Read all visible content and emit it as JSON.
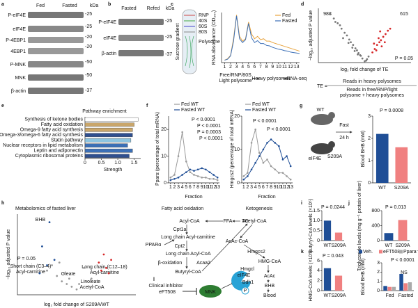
{
  "panels": [
    "a",
    "b",
    "c",
    "d",
    "e",
    "f",
    "g",
    "h",
    "i",
    "j",
    "k",
    "l"
  ],
  "blot_a": {
    "columns": [
      "Fed",
      "Fasted"
    ],
    "unit": "kDa",
    "rows": [
      "P-eIF4E",
      "eIF4E",
      "P-4EBP1",
      "4EBP1",
      "P-MNK",
      "MNK",
      "β-actin"
    ],
    "markers": [
      "-25",
      "-25",
      "-20",
      "-20",
      "-50",
      "-50",
      "-37"
    ]
  },
  "blot_b": {
    "columns": [
      "Fasted",
      "Refed"
    ],
    "unit": "kDa",
    "rows": [
      "P-eIF4E",
      "eIF4E",
      "β-actin"
    ],
    "markers": [
      "-25",
      "-25",
      "-37"
    ]
  },
  "gradient": {
    "label": "Sucrose gradient",
    "layers": [
      "RNP",
      "40S",
      "60S",
      "80S",
      "Polysome"
    ],
    "fractions": [
      "Free/RNP/80S",
      "Light polysome",
      "Heavy polysomes",
      "RNA-seq"
    ]
  },
  "te_formula": {
    "lhs": "TE =",
    "numerator": "Reads in heavy polysomes",
    "denominator": [
      "Reads in free/RNP/light",
      "polysome + heavy polysomes"
    ]
  },
  "mice": {
    "wt": "WT",
    "mutant": "eIF4E",
    "mutant_sup": "S209A",
    "treatment": [
      "Fast",
      "24 h"
    ]
  },
  "pathway": {
    "fao_title": "Fatty acid oxidation",
    "keto_title": "Ketogenesis",
    "fao": [
      "Acyl-CoA",
      "FFA",
      "TG",
      "Cpt1a",
      "Long chain Acyl-carnitine",
      "Cpt2",
      "PPARα",
      "Long chain Acyl-CoA",
      "β-oxidation",
      "Acaa2",
      "Butyryl-CoA"
    ],
    "keto": [
      "Acetyl-CoA",
      "AcAc-CoA",
      "Hmgcs2",
      "HMG-CoA",
      "Hmgcl",
      "AcAc",
      "Bdh1",
      "BHB",
      "Blood"
    ]
  },
  "inhibitor": {
    "label": [
      "Clinical inhibitor",
      "eFT508"
    ],
    "kinase": "MNK",
    "target": "eIF4E",
    "phospho": "P"
  },
  "chart_data": [
    {
      "type": "line",
      "ylabel": "RNA absorbance (OD₂₅₄)",
      "xlim": [
        0.5,
        13.5
      ],
      "ylim": [
        0,
        1.05
      ],
      "xticks": [
        1,
        2,
        3,
        4,
        5,
        6,
        7,
        8,
        9,
        10,
        11,
        12,
        13
      ],
      "x": [
        1,
        1.5,
        2,
        2.5,
        3,
        3.5,
        4,
        4.5,
        5,
        5.5,
        6,
        6.5,
        7,
        7.5,
        8,
        8.5,
        9,
        9.5,
        10,
        10.5,
        11,
        11.5,
        12,
        12.5,
        13,
        13.5
      ],
      "legend": "upper right",
      "series": [
        {
          "name": "Fed",
          "color": "#e8a33d",
          "values": [
            0.05,
            0.08,
            0.15,
            0.5,
            1.0,
            0.55,
            0.45,
            0.5,
            0.85,
            0.6,
            0.5,
            0.55,
            0.48,
            0.5,
            0.45,
            0.45,
            0.42,
            0.4,
            0.38,
            0.36,
            0.34,
            0.32,
            0.3,
            0.28,
            0.26,
            0.24
          ]
        },
        {
          "name": "Fasted",
          "color": "#3b6fb6",
          "values": [
            0.05,
            0.07,
            0.14,
            0.45,
            0.98,
            0.5,
            0.42,
            0.48,
            0.82,
            0.52,
            0.42,
            0.46,
            0.4,
            0.4,
            0.36,
            0.35,
            0.32,
            0.3,
            0.28,
            0.27,
            0.25,
            0.24,
            0.22,
            0.21,
            0.2,
            0.19
          ]
        }
      ]
    },
    {
      "type": "scatter",
      "xlabel": "log₂ fold change of TE",
      "ylabel": "−log₁₀ adjusted P value",
      "xlim": [
        -6,
        6
      ],
      "ylim": [
        0,
        8
      ],
      "annotations": [
        "983",
        "615",
        "P = 0.05"
      ],
      "series": [
        {
          "color": "#777777",
          "x": [
            -4.5,
            -4,
            -3.5,
            -3.2,
            -3,
            -2.6,
            -2.3,
            -2,
            -1.8,
            -1.5,
            -1.2,
            -1,
            -0.8,
            -0.5,
            -0.3,
            0,
            0.3,
            0.5,
            -2.8,
            -1.6,
            -0.9,
            -2.1,
            -3.8,
            -1.3,
            0.2,
            -0.6
          ],
          "values": [
            7.2,
            6.5,
            5.8,
            5.5,
            5,
            4.4,
            4,
            3.4,
            3,
            2.6,
            2.1,
            1.8,
            1.4,
            1,
            0.6,
            0.2,
            0.5,
            0.9,
            3.6,
            2.2,
            1.2,
            2.9,
            6,
            1.7,
            0.3,
            1.1
          ]
        },
        {
          "color": "#d62728",
          "x": [
            1,
            1.3,
            1.6,
            1.9,
            2.1,
            2.4,
            2.7,
            3,
            1.2,
            1.8,
            2.2,
            2.6,
            1.5,
            2,
            3.3
          ],
          "values": [
            1.5,
            2,
            2.6,
            3,
            3.3,
            3.8,
            4.2,
            4.7,
            2.8,
            3.6,
            2.4,
            3,
            1.8,
            4.6,
            5
          ]
        }
      ]
    },
    {
      "type": "barh",
      "title": "Pathway enrichment",
      "xlabel": "Strength",
      "xlim": [
        0,
        1.7
      ],
      "xticks": [
        0,
        0.5,
        {
          "value": 1,
          "label": "1.0"
        },
        1.5
      ],
      "categories": [
        "Synthesis of ketone bodies",
        "Fatty acid oxidation",
        "Omega-9 fatty acid synthesis",
        "Omega-3/omega-6 fatty acid synthesis",
        "Statin pathway",
        "Nuclear receptors in lipid metabolism",
        "Leptin and adiponectin",
        "Cytoplasmic ribosomal proteins"
      ],
      "values": [
        1.62,
        1.5,
        1.45,
        1.45,
        1.4,
        1.3,
        1.45,
        1.35
      ],
      "colors": [
        "#ffffff",
        "#c9a66b",
        "#c9a66b",
        "#2f4f8f",
        "#8ec5e0",
        "#3b6fb6",
        "#3b6fb6",
        "#2f4f8f"
      ]
    },
    {
      "type": "line",
      "ylabel": "Pparα (percentage of total mRNA)",
      "xlabel": "Fraction",
      "xlim": [
        0.5,
        13.5
      ],
      "ylim": [
        0,
        25
      ],
      "yticks": [
        0,
        10,
        20
      ],
      "xticks": [
        1,
        2,
        3,
        4,
        5,
        6,
        7,
        8,
        9,
        10,
        11,
        12,
        13
      ],
      "x": [
        1,
        2,
        3,
        4,
        5,
        6,
        7,
        8,
        9,
        10,
        11,
        12,
        13
      ],
      "legend": "top",
      "annotations": [
        "P < 0.0001",
        "P < 0.0001",
        "P = 0.0003",
        "P < 0.0001"
      ],
      "series": [
        {
          "name": "Fed WT",
          "color": "#999999",
          "values": [
            2,
            3,
            10,
            19,
            8,
            4,
            3,
            2.5,
            2,
            2,
            1.5,
            1.5,
            1
          ]
        },
        {
          "name": "Fasted WT",
          "color": "#1f4e96",
          "values": [
            1,
            1.5,
            2,
            3,
            4,
            5,
            4.5,
            5,
            5.5,
            5,
            4,
            3,
            2
          ]
        }
      ]
    },
    {
      "type": "line",
      "ylabel": "Hmgcs2 (percentage of total mRNA)",
      "xlabel": "Fraction",
      "xlim": [
        0.5,
        13.5
      ],
      "ylim": [
        0,
        20
      ],
      "yticks": [
        0,
        10,
        20
      ],
      "xticks": [
        1,
        2,
        3,
        4,
        5,
        6,
        7,
        8,
        9,
        10,
        11,
        12,
        13
      ],
      "x": [
        1,
        2,
        3,
        4,
        5,
        6,
        7,
        8,
        9,
        10,
        11,
        12,
        13
      ],
      "legend": "top",
      "annotations": [
        "P < 0.0001",
        "P < 0.0001"
      ],
      "series": [
        {
          "name": "Fed WT",
          "color": "#999999",
          "values": [
            2,
            3,
            12,
            16,
            9,
            6,
            7,
            5,
            4,
            3,
            3,
            2,
            1
          ]
        },
        {
          "name": "Fasted WT",
          "color": "#1f4e96",
          "values": [
            1,
            2,
            4,
            6,
            8,
            10,
            12,
            13,
            12,
            11,
            7,
            8,
            5
          ]
        }
      ]
    },
    {
      "type": "bar",
      "ylabel": "Blood BHB (mM)",
      "categories": [
        "WT",
        "S209A"
      ],
      "values": [
        2.2,
        1.6
      ],
      "colors": [
        "#1f4e96",
        "#f08080"
      ],
      "ylim": [
        0,
        3
      ],
      "yticks": [
        0,
        1,
        2,
        3
      ],
      "annotations": [
        "P = 0.0008"
      ]
    },
    {
      "type": "scatter",
      "title": "Metabolomics of fasted liver",
      "xlabel": "log₂ fold change of S209A/WT",
      "ylabel": "−log₁₀ adjusted P value",
      "xlim": [
        -1.2,
        1.2
      ],
      "ylim": [
        0,
        3
      ],
      "annotations": [
        "BHB",
        "P = 0.05",
        "Short chain (C3–4)",
        "Acyl-carnitine",
        "Long chain (C12–18)",
        "Acyl-carnitine",
        "Oleate",
        "Linoleate",
        "Acetyl-CoA"
      ],
      "series": [
        {
          "color": "#999999",
          "x": [
            -0.6,
            -0.4,
            -0.3,
            -0.2,
            -0.1,
            0,
            0.1,
            0.2,
            0.3,
            -0.5,
            -0.25,
            0.05,
            0.15,
            0.4,
            -0.15,
            0.25,
            -0.35
          ],
          "values": [
            0.9,
            0.7,
            0.5,
            0.4,
            0.3,
            0.2,
            0.3,
            0.5,
            0.6,
            1.1,
            0.8,
            0.4,
            1,
            0.8,
            0.6,
            0.3,
            1.2
          ]
        },
        {
          "color": "#1f4e96",
          "x": [
            -0.55,
            -0.7,
            -0.45,
            -0.6,
            -0.75
          ],
          "values": [
            2.7,
            1.8,
            1.3,
            1.1,
            0.8
          ]
        },
        {
          "color": "#d62728",
          "x": [
            0.45,
            0.55,
            0.6,
            0.7,
            0.5,
            0.65
          ],
          "values": [
            1.2,
            1.5,
            1.0,
            1.3,
            0.9,
            0.8
          ]
        }
      ]
    },
    {
      "type": "bar",
      "ylabel": "Butyryl-CoA levels (×10⁵)",
      "categories": [
        "WT",
        "S209A"
      ],
      "values": [
        1.0,
        0.4
      ],
      "colors": [
        "#1f4e96",
        "#f08080"
      ],
      "ylim": [
        0,
        1.5
      ],
      "yticks": [
        0,
        0.5,
        {
          "value": 1,
          "label": "1.0"
        },
        1.5
      ],
      "annotations": [
        "P = 0.0244"
      ]
    },
    {
      "type": "bar",
      "ylabel": "Triglyceride levels (mg g⁻¹ protein of liver)",
      "categories": [
        "WT",
        "S209A"
      ],
      "values": [
        200,
        550
      ],
      "colors": [
        "#1f4e96",
        "#f08080"
      ],
      "ylim": [
        0,
        800
      ],
      "yticks": [
        0,
        400,
        800
      ],
      "annotations": [
        "P = 0.013"
      ]
    },
    {
      "type": "bar",
      "ylabel": "HMG-CoA levels (×10⁵)",
      "categories": [
        "WT",
        "S209A"
      ],
      "values": [
        4.5,
        3
      ],
      "colors": [
        "#1f4e96",
        "#f08080"
      ],
      "ylim": [
        0,
        6
      ],
      "yticks": [
        0,
        2,
        4,
        6
      ],
      "annotations": [
        "P = 0.043"
      ]
    },
    {
      "type": "groupbar",
      "ylabel": "Blood BHB (mM)",
      "categories": [
        "Fed",
        "Fasted"
      ],
      "ylim": [
        0,
        3
      ],
      "yticks": [
        0,
        1,
        2,
        3
      ],
      "legend": "top",
      "annotations": [
        "P < 0.0001",
        "NS"
      ],
      "series": [
        {
          "name": "Veh.",
          "color": "#1f4e96",
          "values": [
            0.5,
            1.8
          ]
        },
        {
          "name": "eFT508",
          "color": "#f08080",
          "values": [
            0.4,
            0.8
          ]
        },
        {
          "name": "Ppara⁻/⁻",
          "color": "#aaaaaa",
          "values": [
            0.4,
            0.9
          ]
        }
      ]
    }
  ]
}
